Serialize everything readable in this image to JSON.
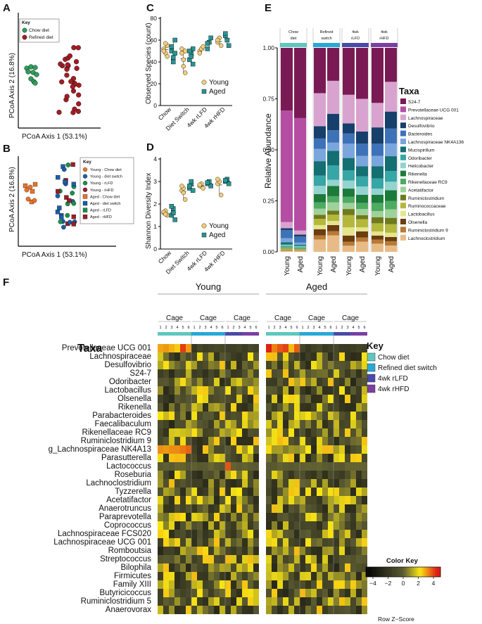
{
  "colors": {
    "chow": "#2e9e5a",
    "refined": "#a51c24",
    "young_chow": "#e8732b",
    "young_switch": "#1a5fa6",
    "young_rlfd": "#1b8f4a",
    "young_rhfd": "#9a1f27",
    "young_point": "#f3cd7a",
    "aged_point": "#2a9494",
    "group_chow": "#5ec8c0",
    "group_switch": "#27a9d8",
    "group_rlfd": "#4a4aaa",
    "group_rhfd": "#7b3fa2"
  },
  "panels": {
    "a": "A",
    "b": "B",
    "c": "C",
    "d": "D",
    "e": "E",
    "f": "F"
  },
  "pcoa_a": {
    "xlabel": "PCoA Axis 1 (53.1%)",
    "ylabel": "PCoA Axis 2 (16.8%)",
    "key_title": "Key",
    "key": [
      "Chow diet",
      "Refined diet"
    ]
  },
  "pcoa_b": {
    "xlabel": "PCoA Axis 1 (53.1%)",
    "ylabel": "PCoA Axis 2 (16.8%)",
    "key_title": "Key",
    "key": [
      "Young - Chow diet",
      "Young - diet switch",
      "Young - rLFD",
      "Young - rHFD",
      "Aged - Chow diet",
      "Aged - diet switch",
      "Aged - rLFD",
      "Aged - rHFD"
    ]
  },
  "chart_data": [
    {
      "type": "scatter",
      "panel": "C",
      "categories": [
        "Chow",
        "Diet Switch",
        "4wk rLFD",
        "4wk rHFD"
      ],
      "ylabel": "Observed Species (count)",
      "ylim": [
        0,
        80
      ],
      "yticks": [
        "0",
        "20",
        "40",
        "60",
        "80"
      ],
      "series": [
        {
          "name": "Young",
          "values": [
            [
              52,
              48,
              55,
              50,
              57,
              45
            ],
            [
              48,
              42,
              30,
              52,
              36,
              50
            ],
            [
              50,
              52,
              54,
              48
            ],
            [
              58,
              62,
              55,
              60
            ]
          ]
        },
        {
          "name": "Aged",
          "values": [
            [
              54,
              44,
              60,
              50,
              40,
              48
            ],
            [
              42,
              48,
              52,
              50,
              45,
              38
            ],
            [
              52,
              58,
              62,
              57
            ],
            [
              64,
              60,
              55,
              66
            ]
          ]
        }
      ]
    },
    {
      "type": "scatter",
      "panel": "D",
      "categories": [
        "Chow",
        "Diet Switch",
        "4wk rLFD",
        "4wk rHFD"
      ],
      "ylabel": "Shannon Diversity Index",
      "ylim": [
        0,
        4
      ],
      "yticks": [
        "0",
        "1",
        "2",
        "3",
        "4"
      ],
      "series": [
        {
          "name": "Young",
          "values": [
            [
              1.6,
              1.7,
              1.5,
              1.65,
              1.55
            ],
            [
              2.6,
              2.7,
              2.2,
              2.8,
              2.5
            ],
            [
              2.8,
              2.9,
              2.7,
              2.85
            ],
            [
              2.9,
              3.0,
              2.4,
              3.1
            ]
          ]
        },
        {
          "name": "Aged",
          "values": [
            [
              1.5,
              1.8,
              1.3,
              1.9,
              1.6
            ],
            [
              2.7,
              2.9,
              2.6,
              2.8,
              3.0
            ],
            [
              2.9,
              3.0,
              2.8,
              2.95
            ],
            [
              3.0,
              3.1,
              2.9,
              3.05
            ]
          ]
        }
      ]
    },
    {
      "type": "bar",
      "stacked": true,
      "panel": "E",
      "ylabel": "Relative Abundance",
      "ylim": [
        0,
        1
      ],
      "yticks": [
        "0.00",
        "0.25",
        "0.50",
        "0.75",
        "1.00"
      ],
      "groups": [
        "Chow diet",
        "Refined switch",
        "4wk rLFD",
        "4wk rHFD"
      ],
      "categories": [
        "Young",
        "Aged",
        "Young",
        "Aged",
        "Young",
        "Aged",
        "Young",
        "Aged"
      ],
      "legend_title": "Taxa",
      "taxa": [
        {
          "name": "S24-7",
          "color": "#7a1a55"
        },
        {
          "name": "Prevotellaceae UCG 001",
          "color": "#b54ea3"
        },
        {
          "name": "Lachnospiraceae",
          "color": "#d9a3cf"
        },
        {
          "name": "Desulfovibrio",
          "color": "#173f6b"
        },
        {
          "name": "Bacteroides",
          "color": "#3d72b8"
        },
        {
          "name": "Lachnospiraceae NK4A136",
          "color": "#7aa6dd"
        },
        {
          "name": "Mucispirillum",
          "color": "#136f72"
        },
        {
          "name": "Odoribacter",
          "color": "#36a6a6"
        },
        {
          "name": "Helicobacter",
          "color": "#93d3d0"
        },
        {
          "name": "Rikenella",
          "color": "#1c7a3a"
        },
        {
          "name": "Rikenellaceae RC9",
          "color": "#4eab62"
        },
        {
          "name": "Acetatifactor",
          "color": "#9fd19b"
        },
        {
          "name": "Ruminiclostridium",
          "color": "#6f7a1c"
        },
        {
          "name": "Ruminococcaceae",
          "color": "#b3b83c"
        },
        {
          "name": "Lactobacillus",
          "color": "#e5e58a"
        },
        {
          "name": "Olsenella",
          "color": "#6b3d10"
        },
        {
          "name": "Ruminiclostridium 9",
          "color": "#b87a35"
        },
        {
          "name": "Lachnoclostridium",
          "color": "#e8bb86"
        }
      ],
      "series": [
        [
          0.31,
          0.55,
          0.03,
          0.01,
          0.04,
          0.02,
          0.01,
          0.005,
          0.005,
          0.004,
          0.003,
          0.003,
          0.003,
          0.003,
          0.002,
          0.002,
          0.002,
          0.005
        ],
        [
          0.35,
          0.56,
          0.02,
          0.01,
          0.03,
          0.01,
          0.005,
          0.005,
          0.005,
          0.003,
          0.002,
          0.002,
          0.002,
          0.002,
          0.002,
          0.002,
          0.002,
          0.004
        ],
        [
          0.22,
          0.0,
          0.16,
          0.06,
          0.05,
          0.06,
          0.07,
          0.05,
          0.04,
          0.04,
          0.03,
          0.03,
          0.02,
          0.03,
          0.02,
          0.03,
          0.02,
          0.06
        ],
        [
          0.16,
          0.0,
          0.16,
          0.08,
          0.06,
          0.04,
          0.07,
          0.07,
          0.03,
          0.05,
          0.03,
          0.04,
          0.02,
          0.03,
          0.02,
          0.03,
          0.02,
          0.08
        ],
        [
          0.23,
          0.0,
          0.14,
          0.05,
          0.05,
          0.07,
          0.06,
          0.05,
          0.04,
          0.04,
          0.03,
          0.03,
          0.03,
          0.06,
          0.04,
          0.03,
          0.02,
          0.03
        ],
        [
          0.25,
          0.0,
          0.16,
          0.06,
          0.06,
          0.05,
          0.05,
          0.05,
          0.04,
          0.04,
          0.03,
          0.03,
          0.02,
          0.04,
          0.02,
          0.03,
          0.02,
          0.05
        ],
        [
          0.27,
          0.0,
          0.12,
          0.08,
          0.06,
          0.05,
          0.06,
          0.05,
          0.03,
          0.04,
          0.04,
          0.03,
          0.03,
          0.04,
          0.02,
          0.02,
          0.02,
          0.04
        ],
        [
          0.16,
          0.0,
          0.14,
          0.08,
          0.07,
          0.06,
          0.07,
          0.05,
          0.04,
          0.05,
          0.04,
          0.04,
          0.03,
          0.04,
          0.02,
          0.02,
          0.02,
          0.03
        ]
      ]
    },
    {
      "type": "heatmap",
      "panel": "F",
      "title": "Taxa",
      "age_groups": [
        "Young",
        "Aged"
      ],
      "cage_label": "Cage",
      "column_labels": [
        "1",
        "2",
        "3",
        "4",
        "5",
        "6",
        "1",
        "2",
        "3",
        "4",
        "5",
        "6",
        "1",
        "2",
        "3",
        "4",
        "5",
        "6",
        "1",
        "2",
        "3",
        "4",
        "5",
        "6",
        "1",
        "2",
        "3",
        "4",
        "5",
        "6",
        "1",
        "2",
        "3",
        "4",
        "5",
        "6"
      ],
      "column_groups": [
        "chow",
        "chow",
        "chow",
        "chow",
        "chow",
        "chow",
        "switch",
        "switch",
        "switch",
        "switch",
        "switch",
        "switch",
        "switch",
        "switch",
        "switch",
        "switch",
        "switch",
        "switch",
        "chow",
        "chow",
        "chow",
        "chow",
        "chow",
        "chow",
        "switch",
        "switch",
        "switch",
        "switch",
        "switch",
        "switch",
        "switch",
        "switch",
        "switch",
        "switch",
        "switch",
        "switch"
      ],
      "rows": [
        "Prevotellaceae UCG 001",
        "Lachnospiraceae",
        "Desulfovibrio",
        "S24-7",
        "Odoribacter",
        "Lactobacillus",
        "Olsenella",
        "Rikenella",
        "Parabacteroides",
        "Faecalibaculum",
        "Rikenellaceae RC9",
        "Ruminiclostridium 9",
        "g_Lachnospiraceae NK4A13",
        "Parasutterella",
        "Lactococcus",
        "Roseburia",
        "Lachnoclostridium",
        "Tyzzerella",
        "Acetatifactor",
        "Anaerotruncus",
        "Paraprevotella",
        "Coprococcus",
        "Lachnospiraceae FCS020",
        "Lachnospiraceae UCG 001",
        "Romboutsia",
        "Streptococcus",
        "Bilophila",
        "Firmicutes",
        "Family XIII",
        "Butyricicoccus",
        "Ruminiclostridium 5",
        "Anaerovorax"
      ],
      "key_title": "Key",
      "key": [
        "Chow diet",
        "Refined diet switch",
        "4wk rLFD",
        "4wk rHFD"
      ],
      "color_key_title": "Color Key",
      "color_key_ticks": [
        "−4",
        "−2",
        "0",
        "2",
        "4"
      ],
      "color_key_label": "Row Z−Score",
      "zlim": [
        -5,
        5
      ]
    }
  ]
}
